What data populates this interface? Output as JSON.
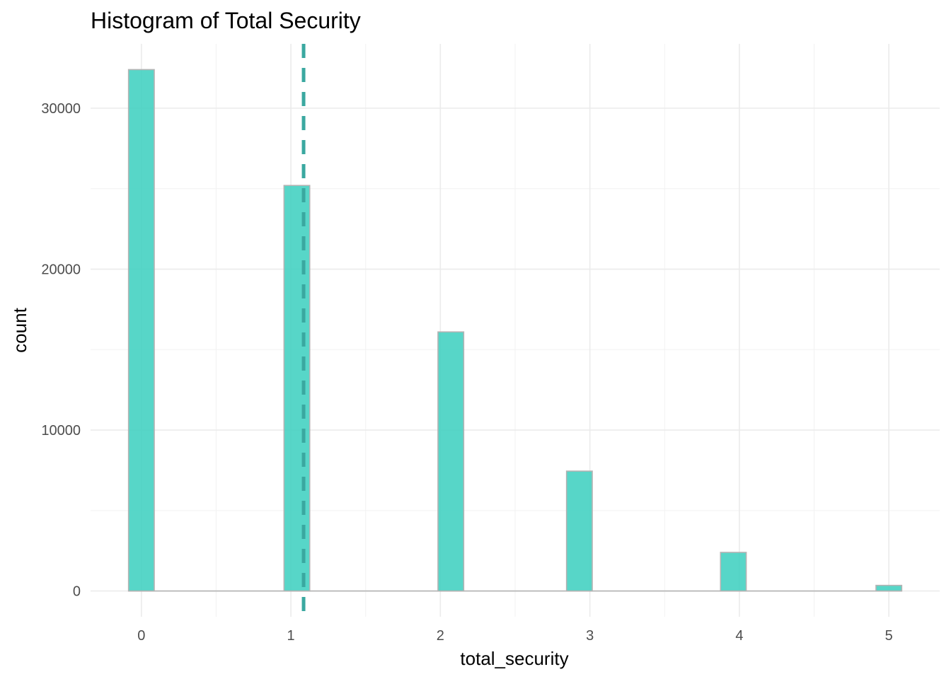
{
  "chart_data": {
    "type": "bar",
    "title": "Histogram of Total Security",
    "xlabel": "total_security",
    "ylabel": "count",
    "x_ticks": [
      "0",
      "1",
      "2",
      "3",
      "4",
      "5"
    ],
    "y_ticks": [
      "0",
      "10000",
      "20000",
      "30000"
    ],
    "xlim": [
      -0.34,
      5.34
    ],
    "ylim": [
      -1600,
      34000
    ],
    "bins": [
      {
        "x": 0.0,
        "count": 32400
      },
      {
        "x": 1.04,
        "count": 25200
      },
      {
        "x": 2.07,
        "count": 16100
      },
      {
        "x": 2.93,
        "count": 7450
      },
      {
        "x": 3.96,
        "count": 2400
      },
      {
        "x": 5.0,
        "count": 350
      }
    ],
    "bin_width": 0.172,
    "mean_line_x": 1.085,
    "grid": true,
    "colors": {
      "bar_fill": "#40d0c0",
      "bar_outline": "#b3b3b3",
      "mean_line": "#3aa8a0"
    }
  }
}
